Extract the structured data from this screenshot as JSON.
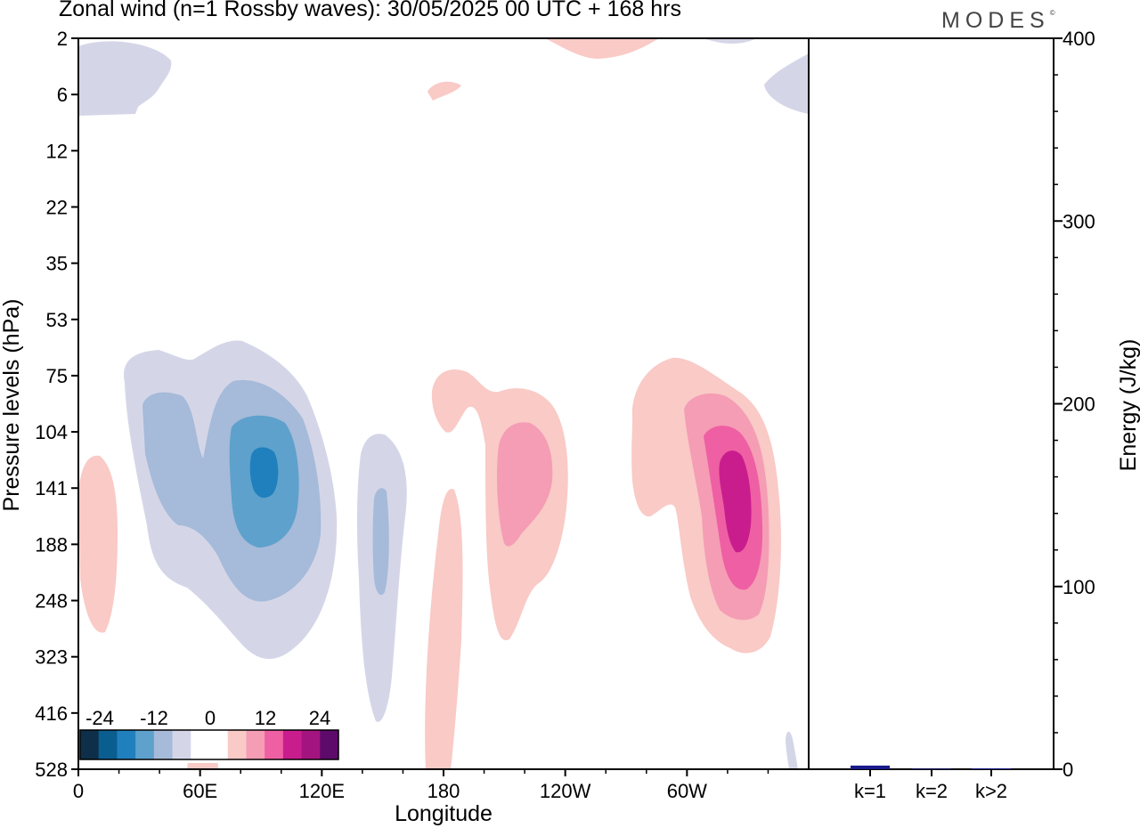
{
  "title": "Zonal wind (n=1 Rossby waves):  30/05/2025  00 UTC  + 168 hrs",
  "brand": "MODES",
  "brand_mark": "©",
  "colorbar": {
    "labels": [
      "-24",
      "-12",
      "0",
      "12",
      "24"
    ],
    "colors": [
      "#0d2f4a",
      "#0a5d8f",
      "#1f80bd",
      "#5ea1cc",
      "#a6bad9",
      "#d4d6e8",
      "#ffffff",
      "#ffffff",
      "#f9cac6",
      "#f59db5",
      "#ef5fa3",
      "#c91d8e",
      "#a41480",
      "#5e0a6b"
    ]
  },
  "chart_data": [
    {
      "type": "heatmap",
      "title": "Zonal wind (n=1 Rossby waves):  30/05/2025  00 UTC  + 168 hrs",
      "xlabel": "Longitude",
      "ylabel": "Pressure levels (hPa)",
      "x_tick_labels": [
        "0",
        "60E",
        "120E",
        "180",
        "120W",
        "60W"
      ],
      "x_ticks_deg": [
        0,
        60,
        120,
        180,
        240,
        300
      ],
      "xlim": [
        0,
        360
      ],
      "y_tick_labels": [
        "2",
        "6",
        "12",
        "22",
        "35",
        "53",
        "75",
        "104",
        "141",
        "188",
        "248",
        "323",
        "416",
        "528"
      ],
      "levels": [
        -24,
        -20,
        -16,
        -12,
        -8,
        -4,
        0,
        4,
        8,
        12,
        16,
        20,
        24
      ],
      "features": [
        {
          "lon": 50,
          "level": "104-188",
          "value": -12,
          "note": "negative region"
        },
        {
          "lon": 92,
          "level": "141",
          "value": -18,
          "note": "negative core"
        },
        {
          "lon": 150,
          "level": "188",
          "value": -8,
          "note": "negative region"
        },
        {
          "lon": 210,
          "level": "141",
          "value": 10,
          "note": "positive region"
        },
        {
          "lon": 318,
          "level": "141-188",
          "value": 20,
          "note": "positive core"
        }
      ]
    },
    {
      "type": "bar",
      "categories": [
        "k=1",
        "k=2",
        "k>2"
      ],
      "values": [
        2,
        0.3,
        0.5
      ],
      "ylabel": "Energy (J/kg)",
      "ylim": [
        0,
        400
      ],
      "y_tick_labels": [
        "0",
        "100",
        "200",
        "300",
        "400"
      ],
      "y_ticks": [
        0,
        100,
        200,
        300,
        400
      ],
      "bar_color": "#1a1a8c"
    }
  ]
}
